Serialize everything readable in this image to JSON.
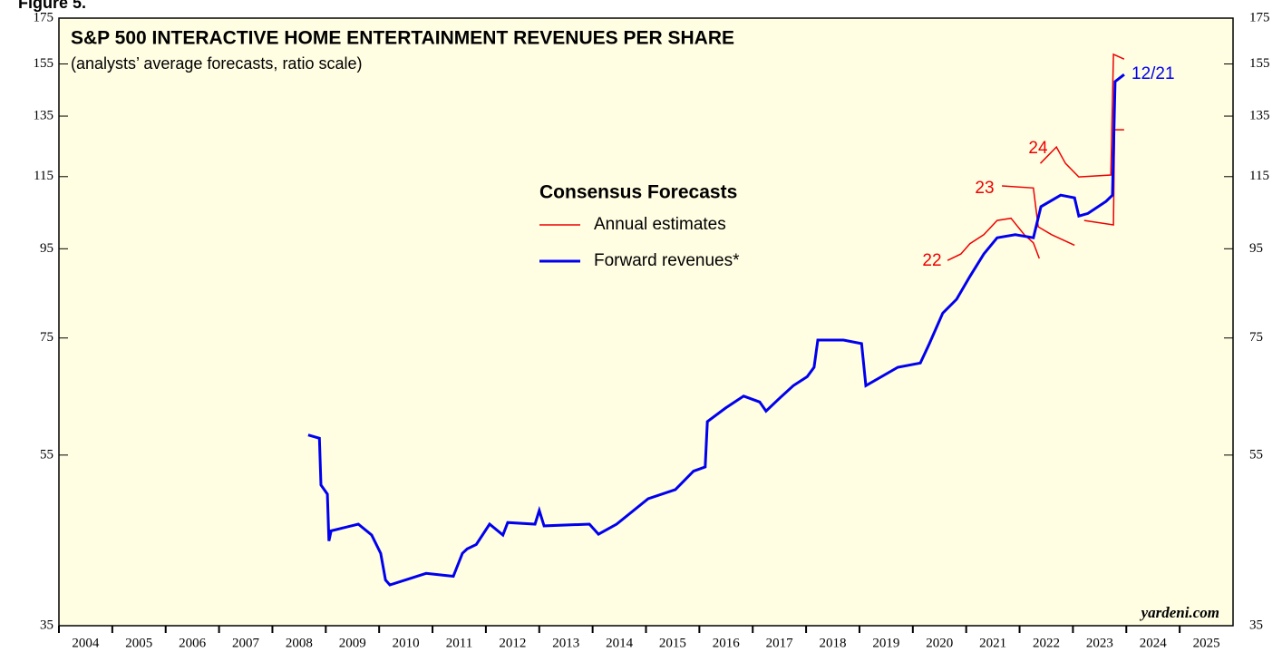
{
  "figure_label": "Figure 5.",
  "chart_data": {
    "type": "line",
    "title": "S&P 500 INTERACTIVE HOME ENTERTAINMENT REVENUES PER SHARE",
    "subtitle": "(analysts’ average forecasts, ratio scale)",
    "legend_title": "Consensus Forecasts",
    "source": "yardeni.com",
    "log_y": true,
    "ylim": [
      35,
      175
    ],
    "yticks": [
      35,
      55,
      75,
      95,
      115,
      135,
      155,
      175
    ],
    "xlim": [
      2004,
      2026
    ],
    "categories": [
      "2004",
      "2005",
      "2006",
      "2007",
      "2008",
      "2009",
      "2010",
      "2011",
      "2012",
      "2013",
      "2014",
      "2015",
      "2016",
      "2017",
      "2018",
      "2019",
      "2020",
      "2021",
      "2022",
      "2023",
      "2024",
      "2025"
    ],
    "annotations": [
      "22",
      "23",
      "24",
      "12/21"
    ],
    "series": [
      {
        "name": "Annual estimates",
        "color": "#ee0000",
        "x": [
          2020.65,
          2020.9,
          2021.07,
          2021.33,
          2021.58,
          2021.84,
          2022.09,
          2022.26,
          2022.37,
          null,
          2021.67,
          2022.26,
          2022.35,
          2022.6,
          2023.03,
          null,
          2022.39,
          2022.69,
          2022.86,
          2023.11,
          2023.71,
          2023.76,
          2023.96,
          null,
          2023.21,
          2023.76,
          2023.78,
          2023.96
        ],
        "values": [
          92.1,
          93.7,
          96.3,
          98.6,
          102.4,
          103.0,
          98.6,
          96.5,
          92.6,
          null,
          112.2,
          111.6,
          100.7,
          98.6,
          95.9,
          null,
          119.1,
          124.4,
          119.1,
          114.9,
          115.5,
          159.0,
          157.0,
          null,
          102.4,
          101.2,
          130.2,
          130.2
        ]
      },
      {
        "name": "Forward revenues*",
        "color": "#0000ee",
        "x": [
          2008.67,
          2008.88,
          2008.91,
          2009.03,
          2009.06,
          2009.1,
          2009.61,
          2009.86,
          2010.03,
          2010.12,
          2010.2,
          2010.88,
          2011.39,
          2011.56,
          2011.65,
          2011.82,
          2012.07,
          2012.32,
          2012.41,
          2012.92,
          2013.0,
          2013.09,
          2013.94,
          2014.11,
          2014.45,
          2015.04,
          2015.55,
          2015.89,
          2016.11,
          2016.15,
          2016.49,
          2016.83,
          2017.13,
          2017.25,
          2017.51,
          2017.76,
          2018.02,
          2018.15,
          2018.22,
          2018.7,
          2019.04,
          2019.12,
          2019.72,
          2020.14,
          2020.31,
          2020.56,
          2020.82,
          2021.07,
          2021.33,
          2021.58,
          2021.92,
          2022.26,
          2022.4,
          2022.77,
          2023.03,
          2023.11,
          2023.28,
          2023.62,
          2023.74,
          2023.79,
          2023.96
        ],
        "values": [
          58.0,
          57.5,
          50.8,
          49.6,
          43.8,
          45.0,
          45.8,
          44.5,
          42.4,
          39.5,
          39.0,
          40.2,
          39.9,
          42.4,
          42.9,
          43.4,
          45.8,
          44.5,
          46.0,
          45.8,
          47.5,
          45.6,
          45.8,
          44.6,
          45.8,
          49.0,
          50.2,
          52.7,
          53.3,
          60.1,
          62.3,
          64.3,
          63.3,
          61.8,
          64.0,
          66.1,
          67.7,
          69.4,
          74.6,
          74.6,
          73.9,
          66.1,
          69.4,
          70.2,
          73.9,
          80.1,
          83.1,
          88.3,
          93.7,
          97.8,
          98.6,
          97.8,
          106.2,
          109.5,
          108.7,
          103.6,
          104.3,
          107.7,
          109.5,
          147.9,
          150.7
        ]
      }
    ]
  }
}
